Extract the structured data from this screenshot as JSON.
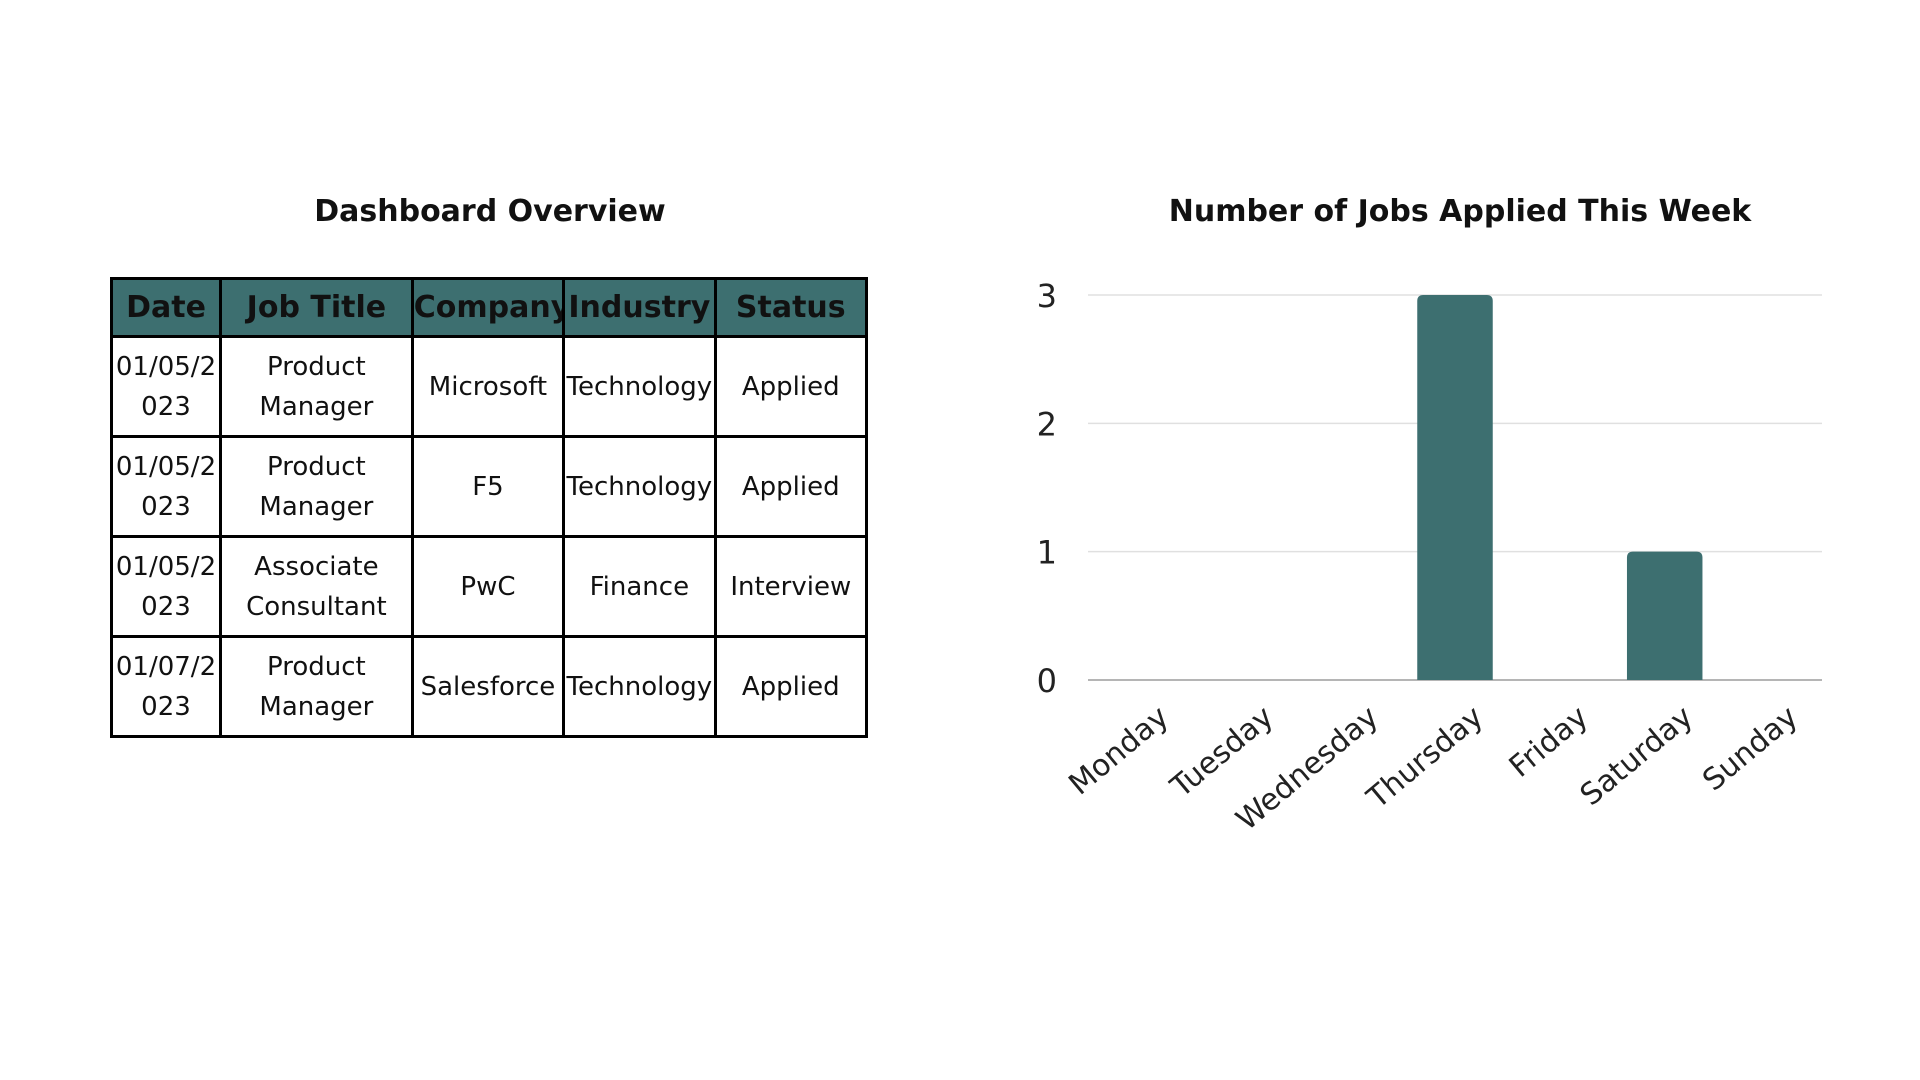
{
  "table_panel": {
    "title": "Dashboard Overview",
    "header_color": "#3d6f70",
    "columns": [
      "Date",
      "Job Title",
      "Company",
      "Industry",
      "Status"
    ],
    "rows": [
      [
        "01/05/2023",
        "Product Manager",
        "Microsoft",
        "Technology",
        "Applied"
      ],
      [
        "01/05/2023",
        "Product Manager",
        "F5",
        "Technology",
        "Applied"
      ],
      [
        "01/05/2023",
        "Associate Consultant",
        "PwC",
        "Finance",
        "Interview"
      ],
      [
        "01/07/2023",
        "Product Manager",
        "Salesforce",
        "Technology",
        "Applied"
      ]
    ]
  },
  "chart_data": {
    "type": "bar",
    "title": "Number of Jobs Applied This Week",
    "xlabel": "",
    "ylabel": "",
    "categories": [
      "Monday",
      "Tuesday",
      "Wednesday",
      "Thursday",
      "Friday",
      "Saturday",
      "Sunday"
    ],
    "values": [
      0,
      0,
      0,
      3,
      0,
      1,
      0
    ],
    "ylim": [
      0,
      3
    ],
    "yticks": [
      0,
      1,
      2,
      3
    ],
    "grid": true,
    "legend": "none",
    "bar_color": "#3d6f70"
  }
}
